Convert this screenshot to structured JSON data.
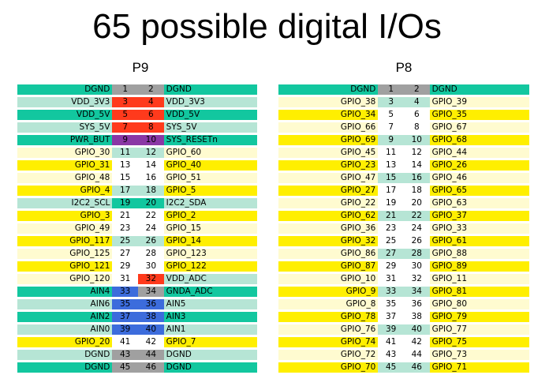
{
  "title": "65 possible digital I/Os",
  "colors": {
    "teal": "#12c79f",
    "light_teal": "#b6e5d5",
    "yellow": "#ffef00",
    "cream": "#fffbd0",
    "gray": "#a0a0a0",
    "red": "#ff3a1c",
    "purple": "#8a37a5",
    "blue": "#3c6cdc",
    "white": "#ffffff"
  },
  "headers": {
    "p9": "P9",
    "p8": "P8"
  },
  "p9_rows": [
    {
      "left": "DGND",
      "pin_l": "1",
      "pin_r": "2",
      "right": "DGND",
      "lc": "teal",
      "nl": "gray",
      "nr": "gray",
      "rc": "teal"
    },
    {
      "left": "VDD_3V3",
      "pin_l": "3",
      "pin_r": "4",
      "right": "VDD_3V3",
      "lc": "light_teal",
      "nl": "red",
      "nr": "red",
      "rc": "light_teal"
    },
    {
      "left": "VDD_5V",
      "pin_l": "5",
      "pin_r": "6",
      "right": "VDD_5V",
      "lc": "teal",
      "nl": "red",
      "nr": "red",
      "rc": "teal"
    },
    {
      "left": "SYS_5V",
      "pin_l": "7",
      "pin_r": "8",
      "right": "SYS_5V",
      "lc": "light_teal",
      "nl": "red",
      "nr": "red",
      "rc": "light_teal"
    },
    {
      "left": "PWR_BUT",
      "pin_l": "9",
      "pin_r": "10",
      "right": "SYS_RESETn",
      "lc": "teal",
      "nl": "purple",
      "nr": "purple",
      "rc": "teal"
    },
    {
      "left": "GPIO_30",
      "pin_l": "11",
      "pin_r": "12",
      "right": "GPIO_60",
      "lc": "cream",
      "nl": "light_teal",
      "nr": "light_teal",
      "rc": "cream"
    },
    {
      "left": "GPIO_31",
      "pin_l": "13",
      "pin_r": "14",
      "right": "GPIO_40",
      "lc": "yellow",
      "nl": "white",
      "nr": "white",
      "rc": "yellow"
    },
    {
      "left": "GPIO_48",
      "pin_l": "15",
      "pin_r": "16",
      "right": "GPIO_51",
      "lc": "cream",
      "nl": "white",
      "nr": "white",
      "rc": "cream"
    },
    {
      "left": "GPIO_4",
      "pin_l": "17",
      "pin_r": "18",
      "right": "GPIO_5",
      "lc": "yellow",
      "nl": "light_teal",
      "nr": "light_teal",
      "rc": "yellow"
    },
    {
      "left": "I2C2_SCL",
      "pin_l": "19",
      "pin_r": "20",
      "right": "I2C2_SDA",
      "lc": "light_teal",
      "nl": "teal",
      "nr": "teal",
      "rc": "light_teal"
    },
    {
      "left": "GPIO_3",
      "pin_l": "21",
      "pin_r": "22",
      "right": "GPIO_2",
      "lc": "yellow",
      "nl": "white",
      "nr": "white",
      "rc": "yellow"
    },
    {
      "left": "GPIO_49",
      "pin_l": "23",
      "pin_r": "24",
      "right": "GPIO_15",
      "lc": "cream",
      "nl": "white",
      "nr": "white",
      "rc": "cream"
    },
    {
      "left": "GPIO_117",
      "pin_l": "25",
      "pin_r": "26",
      "right": "GPIO_14",
      "lc": "yellow",
      "nl": "light_teal",
      "nr": "light_teal",
      "rc": "yellow"
    },
    {
      "left": "GPIO_125",
      "pin_l": "27",
      "pin_r": "28",
      "right": "GPIO_123",
      "lc": "cream",
      "nl": "white",
      "nr": "white",
      "rc": "cream"
    },
    {
      "left": "GPIO_121",
      "pin_l": "29",
      "pin_r": "30",
      "right": "GPIO_122",
      "lc": "yellow",
      "nl": "white",
      "nr": "white",
      "rc": "yellow"
    },
    {
      "left": "GPIO_120",
      "pin_l": "31",
      "pin_r": "32",
      "right": "VDD_ADC",
      "lc": "cream",
      "nl": "white",
      "nr": "red",
      "rc": "light_teal"
    },
    {
      "left": "AIN4",
      "pin_l": "33",
      "pin_r": "34",
      "right": "GNDA_ADC",
      "lc": "teal",
      "nl": "blue",
      "nr": "gray",
      "rc": "teal"
    },
    {
      "left": "AIN6",
      "pin_l": "35",
      "pin_r": "36",
      "right": "AIN5",
      "lc": "light_teal",
      "nl": "blue",
      "nr": "blue",
      "rc": "light_teal"
    },
    {
      "left": "AIN2",
      "pin_l": "37",
      "pin_r": "38",
      "right": "AIN3",
      "lc": "teal",
      "nl": "blue",
      "nr": "blue",
      "rc": "teal"
    },
    {
      "left": "AIN0",
      "pin_l": "39",
      "pin_r": "40",
      "right": "AIN1",
      "lc": "light_teal",
      "nl": "blue",
      "nr": "blue",
      "rc": "light_teal"
    },
    {
      "left": "GPIO_20",
      "pin_l": "41",
      "pin_r": "42",
      "right": "GPIO_7",
      "lc": "yellow",
      "nl": "white",
      "nr": "white",
      "rc": "yellow"
    },
    {
      "left": "DGND",
      "pin_l": "43",
      "pin_r": "44",
      "right": "DGND",
      "lc": "light_teal",
      "nl": "gray",
      "nr": "gray",
      "rc": "light_teal"
    },
    {
      "left": "DGND",
      "pin_l": "45",
      "pin_r": "46",
      "right": "DGND",
      "lc": "teal",
      "nl": "gray",
      "nr": "gray",
      "rc": "teal"
    }
  ],
  "p8_rows": [
    {
      "left": "DGND",
      "pin_l": "1",
      "pin_r": "2",
      "right": "DGND",
      "lc": "teal",
      "nl": "gray",
      "nr": "gray",
      "rc": "teal"
    },
    {
      "left": "GPIO_38",
      "pin_l": "3",
      "pin_r": "4",
      "right": "GPIO_39",
      "lc": "cream",
      "nl": "light_teal",
      "nr": "light_teal",
      "rc": "cream"
    },
    {
      "left": "GPIO_34",
      "pin_l": "5",
      "pin_r": "6",
      "right": "GPIO_35",
      "lc": "yellow",
      "nl": "white",
      "nr": "white",
      "rc": "yellow"
    },
    {
      "left": "GPIO_66",
      "pin_l": "7",
      "pin_r": "8",
      "right": "GPIO_67",
      "lc": "cream",
      "nl": "white",
      "nr": "white",
      "rc": "cream"
    },
    {
      "left": "GPIO_69",
      "pin_l": "9",
      "pin_r": "10",
      "right": "GPIO_68",
      "lc": "yellow",
      "nl": "light_teal",
      "nr": "light_teal",
      "rc": "yellow"
    },
    {
      "left": "GPIO_45",
      "pin_l": "11",
      "pin_r": "12",
      "right": "GPIO_44",
      "lc": "cream",
      "nl": "white",
      "nr": "white",
      "rc": "cream"
    },
    {
      "left": "GPIO_23",
      "pin_l": "13",
      "pin_r": "14",
      "right": "GPIO_26",
      "lc": "yellow",
      "nl": "white",
      "nr": "white",
      "rc": "yellow"
    },
    {
      "left": "GPIO_47",
      "pin_l": "15",
      "pin_r": "16",
      "right": "GPIO_46",
      "lc": "cream",
      "nl": "light_teal",
      "nr": "light_teal",
      "rc": "cream"
    },
    {
      "left": "GPIO_27",
      "pin_l": "17",
      "pin_r": "18",
      "right": "GPIO_65",
      "lc": "yellow",
      "nl": "white",
      "nr": "white",
      "rc": "yellow"
    },
    {
      "left": "GPIO_22",
      "pin_l": "19",
      "pin_r": "20",
      "right": "GPIO_63",
      "lc": "cream",
      "nl": "white",
      "nr": "white",
      "rc": "cream"
    },
    {
      "left": "GPIO_62",
      "pin_l": "21",
      "pin_r": "22",
      "right": "GPIO_37",
      "lc": "yellow",
      "nl": "light_teal",
      "nr": "light_teal",
      "rc": "yellow"
    },
    {
      "left": "GPIO_36",
      "pin_l": "23",
      "pin_r": "24",
      "right": "GPIO_33",
      "lc": "cream",
      "nl": "white",
      "nr": "white",
      "rc": "cream"
    },
    {
      "left": "GPIO_32",
      "pin_l": "25",
      "pin_r": "26",
      "right": "GPIO_61",
      "lc": "yellow",
      "nl": "white",
      "nr": "white",
      "rc": "yellow"
    },
    {
      "left": "GPIO_86",
      "pin_l": "27",
      "pin_r": "28",
      "right": "GPIO_88",
      "lc": "cream",
      "nl": "light_teal",
      "nr": "light_teal",
      "rc": "cream"
    },
    {
      "left": "GPIO_87",
      "pin_l": "29",
      "pin_r": "30",
      "right": "GPIO_89",
      "lc": "yellow",
      "nl": "white",
      "nr": "white",
      "rc": "yellow"
    },
    {
      "left": "GPIO_10",
      "pin_l": "31",
      "pin_r": "32",
      "right": "GPIO_11",
      "lc": "cream",
      "nl": "white",
      "nr": "white",
      "rc": "cream"
    },
    {
      "left": "GPIO_9",
      "pin_l": "33",
      "pin_r": "34",
      "right": "GPIO_81",
      "lc": "yellow",
      "nl": "light_teal",
      "nr": "light_teal",
      "rc": "yellow"
    },
    {
      "left": "GPIO_8",
      "pin_l": "35",
      "pin_r": "36",
      "right": "GPIO_80",
      "lc": "cream",
      "nl": "white",
      "nr": "white",
      "rc": "cream"
    },
    {
      "left": "GPIO_78",
      "pin_l": "37",
      "pin_r": "38",
      "right": "GPIO_79",
      "lc": "yellow",
      "nl": "white",
      "nr": "white",
      "rc": "yellow"
    },
    {
      "left": "GPIO_76",
      "pin_l": "39",
      "pin_r": "40",
      "right": "GPIO_77",
      "lc": "cream",
      "nl": "light_teal",
      "nr": "light_teal",
      "rc": "cream"
    },
    {
      "left": "GPIO_74",
      "pin_l": "41",
      "pin_r": "42",
      "right": "GPIO_75",
      "lc": "yellow",
      "nl": "white",
      "nr": "white",
      "rc": "yellow"
    },
    {
      "left": "GPIO_72",
      "pin_l": "43",
      "pin_r": "44",
      "right": "GPIO_73",
      "lc": "cream",
      "nl": "white",
      "nr": "white",
      "rc": "cream"
    },
    {
      "left": "GPIO_70",
      "pin_l": "45",
      "pin_r": "46",
      "right": "GPIO_71",
      "lc": "yellow",
      "nl": "light_teal",
      "nr": "light_teal",
      "rc": "yellow"
    }
  ]
}
